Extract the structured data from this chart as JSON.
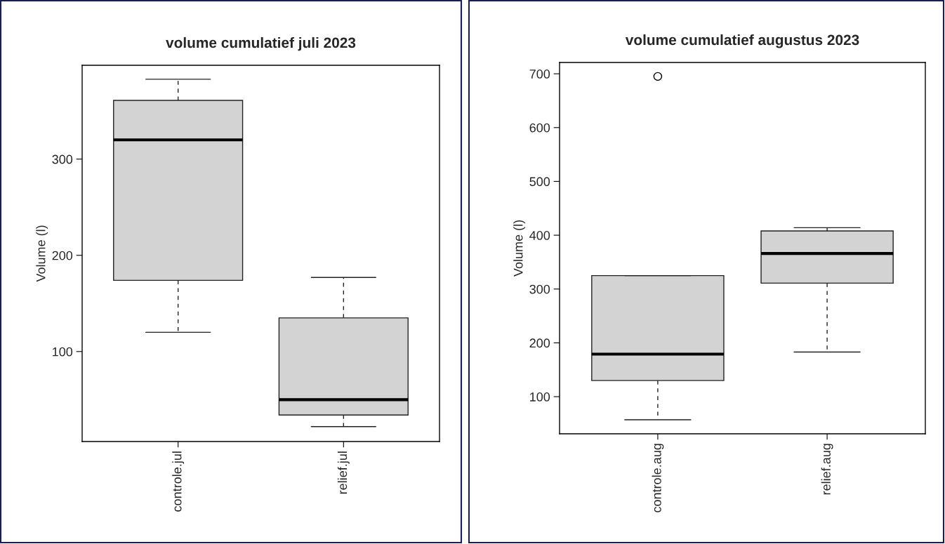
{
  "chart_data": [
    {
      "type": "box",
      "title": "volume cumulatief juli 2023",
      "ylabel": "Volume (l)",
      "categories": [
        "controle.jul",
        "relief.jul"
      ],
      "boxes": [
        {
          "low": 120,
          "q1": 174,
          "median": 320,
          "q3": 361,
          "high": 383
        },
        {
          "low": 22,
          "q1": 34,
          "median": 50,
          "q3": 135,
          "high": 177
        }
      ],
      "color": "#d3d3d3",
      "ylim": [
        6.5,
        397.5
      ],
      "yticks": [
        100,
        200,
        300
      ],
      "grid": false
    },
    {
      "type": "box",
      "title": "volume cumulatief augustus 2023",
      "ylabel": "Volume (l)",
      "categories": [
        "controle.aug",
        "relief.aug"
      ],
      "boxes": [
        {
          "low": 57,
          "q1": 130,
          "median": 179,
          "q3": 325,
          "high": 325,
          "outliers": [
            695
          ]
        },
        {
          "low": 183,
          "q1": 311,
          "median": 366,
          "q3": 408,
          "high": 414
        }
      ],
      "color": "#d3d3d3",
      "ylim": [
        31,
        721
      ],
      "yticks": [
        100,
        200,
        300,
        400,
        500,
        600,
        700
      ],
      "grid": false
    }
  ]
}
